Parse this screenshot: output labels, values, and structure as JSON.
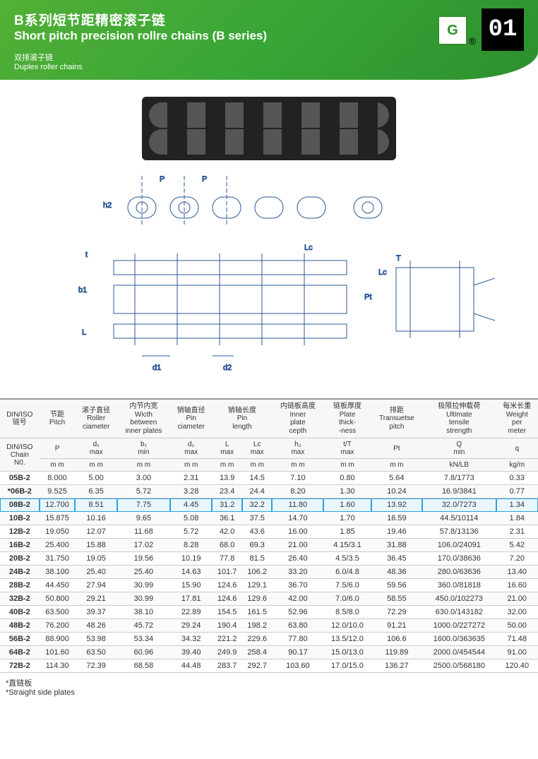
{
  "header": {
    "title_cn": "B系列短节距精密滚子链",
    "title_en": "Short pitch precision rollre chains (B series)",
    "subtitle_cn": "双排滚子链",
    "subtitle_en": "Duplex roller chains",
    "logo_letter": "G",
    "reg_mark": "®",
    "page_number": "01",
    "banner_color_start": "#52b035",
    "banner_color_end": "#2d8f2d"
  },
  "diagram_labels": {
    "P": "P",
    "h2": "h2",
    "t": "t",
    "b1": "b1",
    "L": "L",
    "Lc": "Lc",
    "d1": "d1",
    "d2": "d2",
    "Pt": "Pt",
    "T": "T"
  },
  "table": {
    "header_group_1": {
      "diniso_cn": "DIN/ISO",
      "chain_no_cn": "链号",
      "diniso_en": "DIN/ISO",
      "chain_no_en": "Chain",
      "chain_no_en2": "N0.",
      "pitch_cn": "节距",
      "pitch_en": "Pitch",
      "roller_cn": "滚子直径",
      "roller_en1": "Roller",
      "roller_en2": "ciameter",
      "width_cn": "内节内宽",
      "width_en1": "Wicth",
      "width_en2": "between",
      "width_en3": "inner plates",
      "pin_d_cn": "销轴直径",
      "pin_d_en1": "Pin",
      "pin_d_en2": "ciameter",
      "pin_l_cn": "销轴长度",
      "pin_l_en1": "Pin",
      "pin_l_en2": "length",
      "inner_cn": "内链板高度",
      "inner_en1": "Inner",
      "inner_en2": "plate",
      "inner_en3": "cepth",
      "plate_cn": "链板厚度",
      "plate_en1": "Plate",
      "plate_en2": "thick-",
      "plate_en3": "-ness",
      "trans_cn": "排距",
      "trans_en1": "Transuetse",
      "trans_en2": "pitch",
      "tensile_cn": "极限拉伸载荷",
      "tensile_en1": "Ultimate",
      "tensile_en2": "tensile",
      "tensile_en3": "strength",
      "weight_cn": "每米长重",
      "weight_en1": "Weight",
      "weight_en2": "per",
      "weight_en3": "meter"
    },
    "header_row2": {
      "P": "P",
      "d1": "d₁",
      "d1m": "max",
      "b1": "b₁",
      "b1m": "min",
      "d2": "d₂",
      "d2m": "max",
      "L": "L",
      "Lm": "max",
      "Lc": "Lc",
      "Lcm": "max",
      "h2": "h₂",
      "h2m": "max",
      "tT": "t/T",
      "tTm": "max",
      "Pt": "Pt",
      "Q": "Q",
      "Qm": "min",
      "q": "q"
    },
    "units": {
      "mm": "m m",
      "kNLB": "kN/LB",
      "kgm": "kg/m"
    },
    "rows": [
      {
        "no": "05B-2",
        "hi": false,
        "v": [
          "8.000",
          "5.00",
          "3.00",
          "2.31",
          "13.9",
          "14.5",
          "7.10",
          "0.80",
          "5.64",
          "7.8/1773",
          "0.33"
        ]
      },
      {
        "no": "*06B-2",
        "hi": false,
        "v": [
          "9.525",
          "6.35",
          "5.72",
          "3.28",
          "23.4",
          "24.4",
          "8.20",
          "1.30",
          "10.24",
          "16.9/3841",
          "0.77"
        ]
      },
      {
        "no": "08B-2",
        "hi": true,
        "v": [
          "12.700",
          "8.51",
          "7.75",
          "4.45",
          "31.2",
          "32.2",
          "11.80",
          "1.60",
          "13.92",
          "32.0/7273",
          "1.34"
        ]
      },
      {
        "no": "10B-2",
        "hi": false,
        "v": [
          "15.875",
          "10.16",
          "9.65",
          "5.08",
          "36.1",
          "37.5",
          "14.70",
          "1.70",
          "16.59",
          "44.5/10114",
          "1.84"
        ]
      },
      {
        "no": "12B-2",
        "hi": false,
        "v": [
          "19.050",
          "12.07",
          "11.68",
          "5.72",
          "42.0",
          "43.6",
          "16.00",
          "1.85",
          "19.46",
          "57.8/13136",
          "2.31"
        ]
      },
      {
        "no": "16B-2",
        "hi": false,
        "v": [
          "25.400",
          "15.88",
          "17.02",
          "8.28",
          "68.0",
          "69.3",
          "21.00",
          "4.15/3.1",
          "31.88",
          "106.0/24091",
          "5.42"
        ]
      },
      {
        "no": "20B-2",
        "hi": false,
        "v": [
          "31.750",
          "19.05",
          "19.56",
          "10.19",
          "77.8",
          "81.5",
          "26.40",
          "4.5/3.5",
          "36.45",
          "170.0/38636",
          "7.20"
        ]
      },
      {
        "no": "24B-2",
        "hi": false,
        "v": [
          "38.100",
          "25.40",
          "25.40",
          "14.63",
          "101.7",
          "106.2",
          "33.20",
          "6.0/4.8",
          "48.36",
          "280.0/63636",
          "13.40"
        ]
      },
      {
        "no": "28B-2",
        "hi": false,
        "v": [
          "44.450",
          "27.94",
          "30.99",
          "15.90",
          "124.6",
          "129.1",
          "36.70",
          "7.5/6.0",
          "59.56",
          "360.0/81818",
          "16.60"
        ]
      },
      {
        "no": "32B-2",
        "hi": false,
        "v": [
          "50.800",
          "29.21",
          "30.99",
          "17.81",
          "124.6",
          "129.6",
          "42.00",
          "7.0/6.0",
          "58.55",
          "450.0/102273",
          "21.00"
        ]
      },
      {
        "no": "40B-2",
        "hi": false,
        "v": [
          "63.500",
          "39.37",
          "38.10",
          "22.89",
          "154.5",
          "161.5",
          "52.96",
          "8.5/8.0",
          "72.29",
          "630.0/143182",
          "32.00"
        ]
      },
      {
        "no": "48B-2",
        "hi": false,
        "v": [
          "76.200",
          "48.26",
          "45.72",
          "29.24",
          "190.4",
          "198.2",
          "63.80",
          "12.0/10.0",
          "91.21",
          "1000.0/227272",
          "50.00"
        ]
      },
      {
        "no": "56B-2",
        "hi": false,
        "v": [
          "88.900",
          "53.98",
          "53.34",
          "34.32",
          "221.2",
          "229.6",
          "77.80",
          "13.5/12.0",
          "106.6",
          "1600.0/363635",
          "71.48"
        ]
      },
      {
        "no": "64B-2",
        "hi": false,
        "v": [
          "101.60",
          "63.50",
          "60.96",
          "39.40",
          "249.9",
          "258.4",
          "90.17",
          "15.0/13.0",
          "119.89",
          "2000.0/454544",
          "91.00"
        ]
      },
      {
        "no": "72B-2",
        "hi": false,
        "v": [
          "114.30",
          "72.39",
          "68.58",
          "44.48",
          "283.7",
          "292.7",
          "103.60",
          "17.0/15.0",
          "136.27",
          "2500.0/568180",
          "120.40"
        ]
      }
    ]
  },
  "footnote": "*直链板",
  "footnote_en": "*Straight side plates",
  "styling": {
    "highlight_color": "#2aa3e0",
    "highlight_bg": "#eaf6fd",
    "table_border": "#cccccc",
    "table_header_bg": "#f7f7f7",
    "body_text": "#333333",
    "font_size_table": 11
  }
}
